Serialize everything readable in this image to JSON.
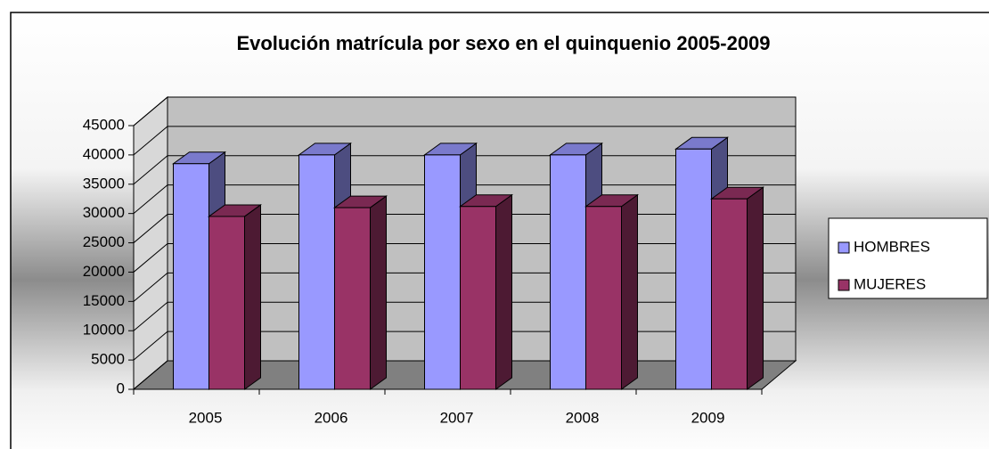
{
  "chart_data": {
    "type": "bar3d",
    "title": "Evolución matrícula por sexo en el quinquenio 2005-2009",
    "categories": [
      "2005",
      "2006",
      "2007",
      "2008",
      "2009"
    ],
    "series": [
      {
        "name": "HOMBRES",
        "color": "#9999ff",
        "values": [
          38500,
          40000,
          40000,
          40000,
          41000
        ]
      },
      {
        "name": "MUJERES",
        "color": "#993366",
        "values": [
          29500,
          31000,
          31200,
          31200,
          32500
        ]
      }
    ],
    "ylim": [
      0,
      45000
    ],
    "yticks": [
      0,
      5000,
      10000,
      15000,
      20000,
      25000,
      30000,
      35000,
      40000,
      45000
    ],
    "grid": true,
    "legend": "right"
  }
}
